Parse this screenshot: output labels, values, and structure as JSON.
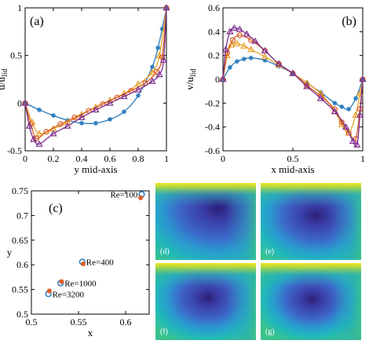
{
  "colors": {
    "re100": "#2b7bbd",
    "re400": "#e8a02a",
    "re1000": "#d95c25",
    "re3200": "#7e2f8e",
    "axis": "#000000"
  },
  "chart_data": [
    {
      "panel": "(a)",
      "type": "line",
      "xlabel": "y mid-axis",
      "ylabel": "u/u_lid",
      "ylabel_main": "u/u",
      "ylabel_sub": "lid",
      "xlim": [
        0,
        1
      ],
      "ylim": [
        -0.5,
        1
      ],
      "xticks": [
        "0",
        "0.2",
        "0.4",
        "0.6",
        "0.8",
        "1"
      ],
      "yticks": [
        "-0.5",
        "0",
        "0.5",
        "1"
      ],
      "series": [
        {
          "color_key": "re100",
          "marker": "star",
          "x": [
            0.0,
            0.1,
            0.2,
            0.3,
            0.4,
            0.5,
            0.6,
            0.7,
            0.8,
            0.9,
            0.94,
            0.97,
            1.0
          ],
          "y": [
            0.0,
            -0.07,
            -0.13,
            -0.18,
            -0.21,
            -0.21,
            -0.17,
            -0.09,
            0.08,
            0.38,
            0.58,
            0.78,
            1.0
          ]
        },
        {
          "color_key": "re400",
          "marker": "triangle",
          "x": [
            0.0,
            0.05,
            0.1,
            0.2,
            0.3,
            0.4,
            0.5,
            0.6,
            0.7,
            0.8,
            0.9,
            0.95,
            1.0
          ],
          "y": [
            0.0,
            -0.2,
            -0.32,
            -0.27,
            -0.2,
            -0.12,
            -0.04,
            0.03,
            0.1,
            0.2,
            0.32,
            0.5,
            1.0
          ]
        },
        {
          "color_key": "re1000",
          "marker": "circle",
          "x": [
            0.0,
            0.04,
            0.08,
            0.15,
            0.25,
            0.35,
            0.45,
            0.55,
            0.65,
            0.75,
            0.85,
            0.93,
            0.97,
            1.0
          ],
          "y": [
            0.0,
            -0.22,
            -0.37,
            -0.3,
            -0.22,
            -0.15,
            -0.08,
            -0.01,
            0.06,
            0.13,
            0.21,
            0.33,
            0.48,
            1.0
          ]
        },
        {
          "color_key": "re3200",
          "marker": "triangle",
          "x": [
            0.0,
            0.03,
            0.06,
            0.1,
            0.2,
            0.3,
            0.4,
            0.5,
            0.6,
            0.7,
            0.8,
            0.9,
            0.95,
            0.98,
            1.0
          ],
          "y": [
            0.0,
            -0.24,
            -0.38,
            -0.43,
            -0.32,
            -0.24,
            -0.15,
            -0.07,
            0.0,
            0.07,
            0.14,
            0.23,
            0.3,
            0.45,
            1.0
          ]
        }
      ]
    },
    {
      "panel": "(b)",
      "type": "line",
      "xlabel": "x mid-axis",
      "ylabel": "v/u_lid",
      "ylabel_main": "v/u",
      "ylabel_sub": "lid",
      "xlim": [
        0,
        1
      ],
      "ylim": [
        -0.6,
        0.6
      ],
      "xticks": [
        "0",
        "0.5",
        "1"
      ],
      "yticks": [
        "-0.6",
        "-0.4",
        "-0.2",
        "0",
        "0.2",
        "0.4",
        "0.6"
      ],
      "series": [
        {
          "color_key": "re100",
          "marker": "star",
          "x": [
            0.0,
            0.05,
            0.1,
            0.15,
            0.2,
            0.3,
            0.4,
            0.5,
            0.6,
            0.7,
            0.8,
            0.85,
            0.9,
            0.95,
            1.0
          ],
          "y": [
            0.0,
            0.1,
            0.15,
            0.17,
            0.18,
            0.16,
            0.11,
            0.05,
            -0.03,
            -0.11,
            -0.2,
            -0.23,
            -0.25,
            -0.16,
            0.0
          ]
        },
        {
          "color_key": "re400",
          "marker": "triangle",
          "x": [
            0.0,
            0.03,
            0.06,
            0.1,
            0.15,
            0.2,
            0.3,
            0.4,
            0.5,
            0.6,
            0.7,
            0.8,
            0.85,
            0.9,
            0.95,
            0.98,
            1.0
          ],
          "y": [
            0.0,
            0.2,
            0.29,
            0.3,
            0.28,
            0.25,
            0.19,
            0.12,
            0.05,
            -0.03,
            -0.12,
            -0.27,
            -0.38,
            -0.45,
            -0.3,
            -0.12,
            0.0
          ]
        },
        {
          "color_key": "re1000",
          "marker": "circle",
          "x": [
            0.0,
            0.03,
            0.07,
            0.12,
            0.2,
            0.3,
            0.4,
            0.5,
            0.6,
            0.7,
            0.8,
            0.85,
            0.9,
            0.95,
            0.98,
            1.0
          ],
          "y": [
            0.0,
            0.22,
            0.33,
            0.37,
            0.33,
            0.24,
            0.13,
            0.05,
            -0.05,
            -0.14,
            -0.25,
            -0.36,
            -0.45,
            -0.5,
            -0.25,
            0.0
          ]
        },
        {
          "color_key": "re3200",
          "marker": "triangle",
          "x": [
            0.0,
            0.02,
            0.05,
            0.08,
            0.12,
            0.17,
            0.23,
            0.3,
            0.4,
            0.5,
            0.6,
            0.7,
            0.8,
            0.88,
            0.93,
            0.96,
            0.98,
            1.0
          ],
          "y": [
            0.0,
            0.25,
            0.4,
            0.43,
            0.42,
            0.38,
            0.32,
            0.24,
            0.13,
            0.05,
            -0.06,
            -0.16,
            -0.27,
            -0.4,
            -0.52,
            -0.55,
            -0.3,
            0.0
          ]
        }
      ]
    },
    {
      "panel": "(c)",
      "type": "scatter",
      "xlabel": "x",
      "ylabel": "y",
      "xlim": [
        0.5,
        0.625
      ],
      "ylim": [
        0.5,
        0.75
      ],
      "xticks": [
        "0.5",
        "0.55",
        "0.6"
      ],
      "yticks": [
        "0.5",
        "0.55",
        "0.6",
        "0.65",
        "0.7",
        "0.75"
      ],
      "points": [
        {
          "label": "Re=100",
          "color_key": "re100",
          "x": 0.617,
          "y": 0.743,
          "x2": 0.616,
          "y2": 0.736
        },
        {
          "label": "Re=400",
          "color_key": "re400",
          "x": 0.554,
          "y": 0.606,
          "x2": 0.555,
          "y2": 0.602
        },
        {
          "label": "Re=1000",
          "color_key": "re1000",
          "x": 0.531,
          "y": 0.563,
          "x2": 0.532,
          "y2": 0.566
        },
        {
          "label": "Re=3200",
          "color_key": "re3200",
          "x": 0.518,
          "y": 0.541,
          "x2": 0.519,
          "y2": 0.547
        }
      ]
    }
  ],
  "heatmaps": [
    {
      "tag": "(d)",
      "vortex_x": 0.62,
      "vortex_y": 0.33,
      "spread": 0.9
    },
    {
      "tag": "(e)",
      "vortex_x": 0.55,
      "vortex_y": 0.42,
      "spread": 0.75
    },
    {
      "tag": "(f)",
      "vortex_x": 0.52,
      "vortex_y": 0.45,
      "spread": 0.65
    },
    {
      "tag": "(g)",
      "vortex_x": 0.51,
      "vortex_y": 0.47,
      "spread": 0.6
    }
  ]
}
